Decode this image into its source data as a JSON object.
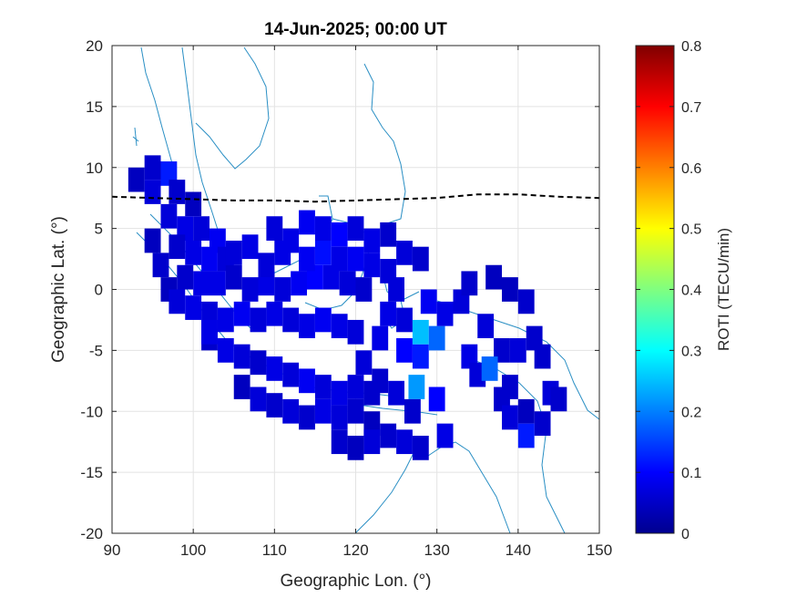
{
  "chart_data": {
    "type": "heatmap",
    "title": "14-Jun-2025; 00:00 UT",
    "xlabel": "Geographic Lon. (°)",
    "ylabel": "Geographic Lat. (°)",
    "xlim": [
      90,
      150
    ],
    "ylim": [
      -20,
      20
    ],
    "xticks": [
      "90",
      "100",
      "110",
      "120",
      "130",
      "140",
      "150"
    ],
    "yticks": [
      "20",
      "15",
      "10",
      "5",
      "0",
      "-5",
      "-10",
      "-15",
      "-20"
    ],
    "grid": true,
    "colorbar": {
      "label": "ROTI (TECU/min)",
      "range": [
        0,
        0.8
      ],
      "ticks": [
        "0.8",
        "0.7",
        "0.6",
        "0.5",
        "0.4",
        "0.3",
        "0.2",
        "0.1",
        "0"
      ],
      "colormap": "jet"
    },
    "magnetic_equator": {
      "style": "dashed",
      "color": "#000000",
      "lon": [
        90,
        95,
        100,
        105,
        110,
        115,
        120,
        125,
        130,
        135,
        140,
        145,
        150
      ],
      "lat": [
        7.6,
        7.5,
        7.4,
        7.3,
        7.3,
        7.2,
        7.3,
        7.4,
        7.5,
        7.8,
        7.8,
        7.6,
        7.5
      ]
    },
    "cell_size_deg": [
      2,
      2
    ],
    "cells": [
      [
        93,
        9,
        0.05
      ],
      [
        95,
        10,
        0.06
      ],
      [
        97,
        9.5,
        0.12
      ],
      [
        95,
        8,
        0.07
      ],
      [
        98,
        8,
        0.06
      ],
      [
        100,
        7,
        0.05
      ],
      [
        97,
        6,
        0.07
      ],
      [
        99,
        5,
        0.08
      ],
      [
        101,
        5,
        0.07
      ],
      [
        103,
        4,
        0.09
      ],
      [
        95,
        4,
        0.05
      ],
      [
        98,
        3.5,
        0.06
      ],
      [
        100,
        3,
        0.08
      ],
      [
        102,
        2.5,
        0.09
      ],
      [
        104,
        2.5,
        0.07
      ],
      [
        99,
        1,
        0.06
      ],
      [
        101,
        0.5,
        0.08
      ],
      [
        103,
        0.5,
        0.08
      ],
      [
        105,
        1,
        0.06
      ],
      [
        107,
        0,
        0.07
      ],
      [
        109,
        0.5,
        0.08
      ],
      [
        111,
        0,
        0.07
      ],
      [
        113,
        0.5,
        0.09
      ],
      [
        115,
        1,
        0.1
      ],
      [
        117,
        1,
        0.08
      ],
      [
        119,
        0.5,
        0.07
      ],
      [
        121,
        0,
        0.06
      ],
      [
        97,
        0,
        0.05
      ],
      [
        100,
        -1.5,
        0.08
      ],
      [
        102,
        -2,
        0.07
      ],
      [
        104,
        -2.5,
        0.08
      ],
      [
        106,
        -2,
        0.09
      ],
      [
        108,
        -2.5,
        0.07
      ],
      [
        110,
        -2,
        0.08
      ],
      [
        112,
        -2.5,
        0.07
      ],
      [
        114,
        -3,
        0.08
      ],
      [
        116,
        -2.5,
        0.09
      ],
      [
        118,
        -3,
        0.08
      ],
      [
        120,
        -3.5,
        0.07
      ],
      [
        102,
        -4,
        0.06
      ],
      [
        104,
        -5,
        0.08
      ],
      [
        106,
        -5.5,
        0.07
      ],
      [
        108,
        -6,
        0.06
      ],
      [
        110,
        -6.5,
        0.08
      ],
      [
        112,
        -7,
        0.07
      ],
      [
        114,
        -7.5,
        0.09
      ],
      [
        116,
        -8,
        0.07
      ],
      [
        118,
        -8.5,
        0.08
      ],
      [
        120,
        -8,
        0.07
      ],
      [
        122,
        -8.5,
        0.06
      ],
      [
        106,
        -8,
        0.05
      ],
      [
        108,
        -9,
        0.07
      ],
      [
        110,
        -9.5,
        0.06
      ],
      [
        112,
        -10,
        0.07
      ],
      [
        114,
        -10.5,
        0.06
      ],
      [
        116,
        -10,
        0.08
      ],
      [
        118,
        -10.5,
        0.07
      ],
      [
        120,
        -10,
        0.06
      ],
      [
        122,
        -11,
        0.05
      ],
      [
        110,
        5,
        0.07
      ],
      [
        112,
        4,
        0.08
      ],
      [
        114,
        5.5,
        0.09
      ],
      [
        116,
        5,
        0.08
      ],
      [
        118,
        4.5,
        0.1
      ],
      [
        120,
        5,
        0.07
      ],
      [
        122,
        4,
        0.08
      ],
      [
        124,
        4.5,
        0.06
      ],
      [
        126,
        3,
        0.07
      ],
      [
        128,
        2.5,
        0.06
      ],
      [
        114,
        2.5,
        0.09
      ],
      [
        116,
        3,
        0.11
      ],
      [
        118,
        2.5,
        0.08
      ],
      [
        120,
        2.5,
        0.09
      ],
      [
        122,
        2,
        0.08
      ],
      [
        124,
        1.5,
        0.07
      ],
      [
        124,
        -2,
        0.08
      ],
      [
        126,
        -2.5,
        0.07
      ],
      [
        126,
        -5,
        0.1
      ],
      [
        128,
        -5.5,
        0.12
      ],
      [
        128,
        -3.5,
        0.25
      ],
      [
        130,
        -4,
        0.18
      ],
      [
        127.5,
        -8,
        0.22
      ],
      [
        130,
        -9,
        0.1
      ],
      [
        131,
        -12,
        0.08
      ],
      [
        129,
        -1,
        0.09
      ],
      [
        131,
        -2,
        0.08
      ],
      [
        133,
        -1,
        0.07
      ],
      [
        134,
        0.5,
        0.06
      ],
      [
        137,
        1,
        0.05
      ],
      [
        139,
        0,
        0.05
      ],
      [
        141,
        -1,
        0.06
      ],
      [
        136,
        -3,
        0.07
      ],
      [
        138,
        -5,
        0.06
      ],
      [
        140,
        -5,
        0.07
      ],
      [
        142,
        -4,
        0.06
      ],
      [
        134,
        -5.5,
        0.08
      ],
      [
        135,
        -7,
        0.07
      ],
      [
        136.5,
        -6.5,
        0.18
      ],
      [
        139,
        -8,
        0.06
      ],
      [
        143,
        -5.5,
        0.06
      ],
      [
        144,
        -8.5,
        0.07
      ],
      [
        141,
        -10,
        0.05
      ],
      [
        138,
        -9,
        0.06
      ],
      [
        139,
        -10.5,
        0.07
      ],
      [
        143,
        -11,
        0.06
      ],
      [
        145,
        -9,
        0.06
      ],
      [
        141,
        -12,
        0.12
      ],
      [
        124,
        -12,
        0.06
      ],
      [
        126,
        -12.5,
        0.07
      ],
      [
        128,
        -13,
        0.06
      ],
      [
        118,
        -12.5,
        0.06
      ],
      [
        120,
        -13,
        0.05
      ],
      [
        122,
        -12.5,
        0.07
      ],
      [
        105,
        3,
        0.07
      ],
      [
        107,
        3.5,
        0.08
      ],
      [
        109,
        2,
        0.07
      ],
      [
        111,
        3,
        0.08
      ],
      [
        96,
        2,
        0.06
      ],
      [
        98,
        -1,
        0.07
      ],
      [
        102,
        -3.5,
        0.08
      ],
      [
        125,
        0,
        0.07
      ],
      [
        123,
        -4,
        0.08
      ],
      [
        121,
        -6,
        0.07
      ],
      [
        123,
        -7.5,
        0.06
      ],
      [
        125,
        -8.5,
        0.07
      ],
      [
        127,
        -10,
        0.06
      ]
    ]
  }
}
